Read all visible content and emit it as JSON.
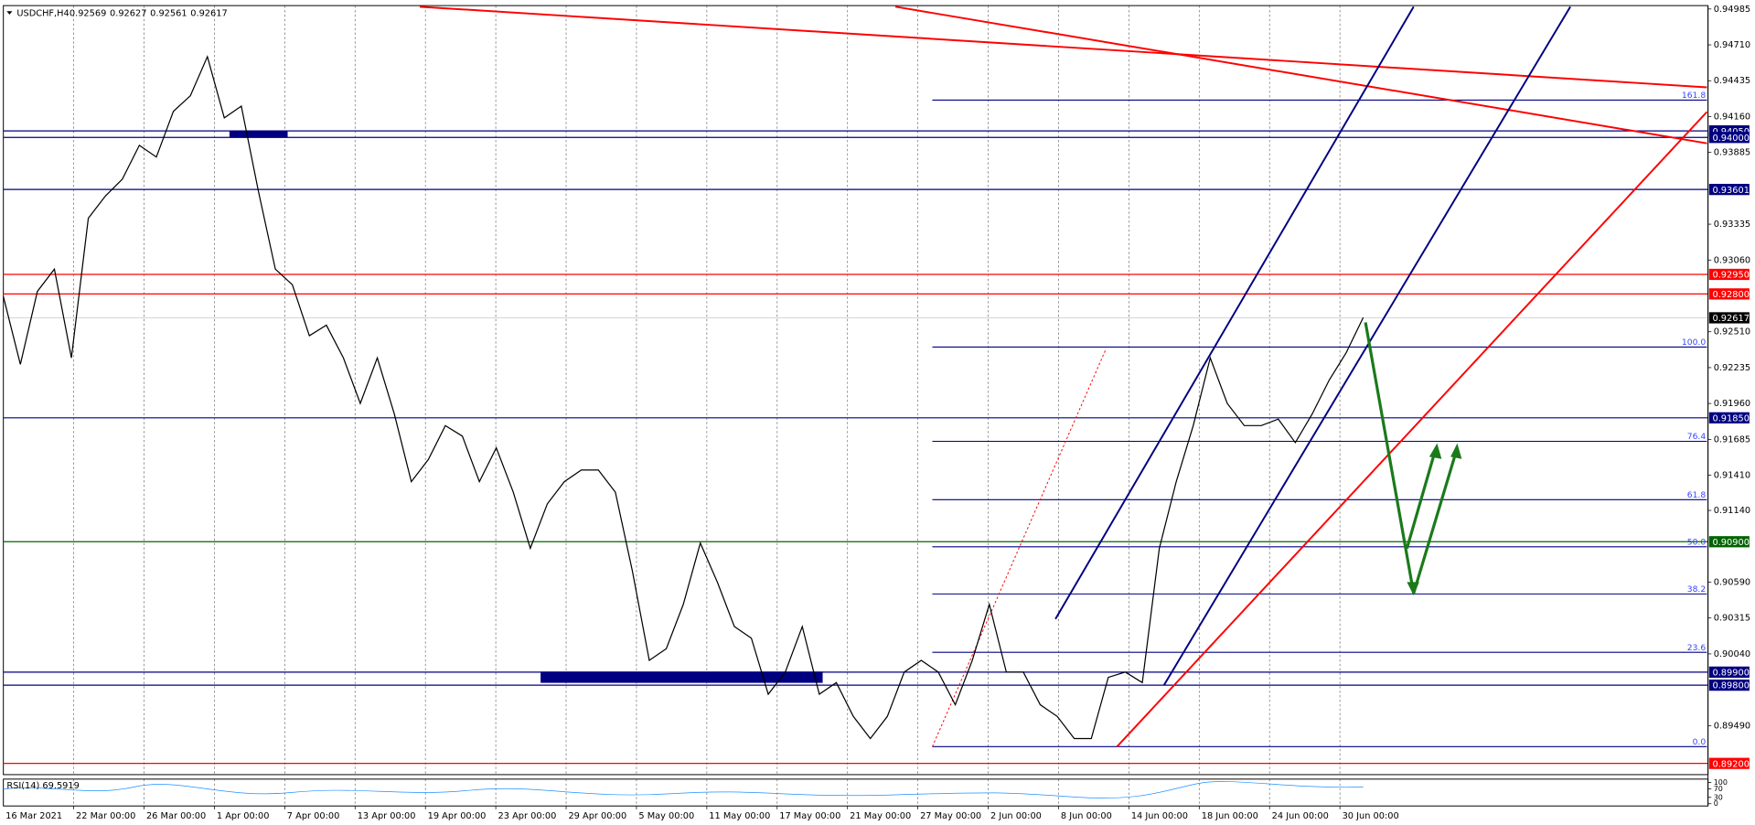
{
  "header": {
    "symbol": "USDCHF,H4",
    "ohlc": [
      0.92569,
      0.92627,
      0.92561,
      0.92617
    ]
  },
  "price_axis": {
    "ylim": [
      0.89114,
      0.95011
    ],
    "ticks": [
      0.94985,
      {
        "value": 0.9471,
        "label": "0.94710"
      },
      0.94435,
      {
        "value": 0.9416,
        "label": "0.94160"
      },
      0.93885,
      0.93335,
      {
        "value": 0.9306,
        "label": "0.93060"
      },
      {
        "value": 0.9251,
        "label": "0.92510"
      },
      0.92235,
      {
        "value": 0.9196,
        "label": "0.91960"
      },
      0.91685,
      {
        "value": 0.9141,
        "label": "0.91410"
      },
      {
        "value": 0.9114,
        "label": "0.91140"
      },
      {
        "value": 0.9059,
        "label": "0.90590"
      },
      0.90315,
      {
        "value": 0.9004,
        "label": "0.90040"
      },
      {
        "value": 0.8949,
        "label": "0.89490"
      }
    ]
  },
  "levels": [
    {
      "value": 0.9405,
      "label": "0.94050",
      "color": "#000080"
    },
    {
      "value": 0.94,
      "label": "0.94000",
      "color": "#000080"
    },
    {
      "value": 0.93601,
      "label": "0.93601",
      "color": "#000080"
    },
    {
      "value": 0.9295,
      "label": "0.92950",
      "color": "#ff0000"
    },
    {
      "value": 0.928,
      "label": "0.92800",
      "color": "#ff0000"
    },
    {
      "value": 0.92617,
      "label": "0.92617",
      "color": "#000000"
    },
    {
      "value": 0.9185,
      "label": "0.91850",
      "color": "#000080"
    },
    {
      "value": 0.909,
      "label": "0.90900",
      "color": "#006400"
    },
    {
      "value": 0.899,
      "label": "0.89900",
      "color": "#000080"
    },
    {
      "value": 0.898,
      "label": "0.89800",
      "color": "#000080"
    },
    {
      "value": 0.892,
      "label": "0.89200",
      "color": "#ff0000"
    }
  ],
  "fibonacci": {
    "low": 0.89329,
    "high": 0.92393,
    "levels": [
      161.8,
      {
        "value": 100,
        "label": "100.0"
      },
      76.4,
      61.8,
      {
        "value": 50,
        "label": "50.0"
      },
      38.2,
      23.6,
      {
        "value": 0,
        "label": "0.0"
      }
    ]
  },
  "price_trace": {
    "values": [
      0.9278,
      0.9226,
      0.9282,
      0.9299,
      0.9231,
      0.9338,
      0.9355,
      0.9368,
      0.9394,
      0.9385,
      0.942,
      0.9432,
      0.9462,
      0.9415,
      0.9424,
      0.9359,
      0.9299,
      0.9287,
      0.9248,
      0.9256,
      0.9231,
      0.9196,
      0.9231,
      0.9188,
      0.9136,
      0.9153,
      0.9179,
      0.9171,
      0.9136,
      0.9162,
      0.9128,
      0.9085,
      0.9119,
      0.9136,
      0.9145,
      0.9145,
      0.9128,
      0.9068,
      0.8999,
      0.9008,
      0.9042,
      0.9089,
      0.9059,
      0.9025,
      0.9016,
      0.8973,
      0.899,
      0.9025,
      0.8973,
      0.8982,
      0.8956,
      0.8939,
      0.8956,
      0.899,
      0.8999,
      0.899,
      0.8965,
      0.8999,
      0.9042,
      0.899,
      0.899,
      0.8965,
      0.8956,
      0.8939,
      0.8939,
      0.8986,
      0.899,
      0.8982,
      0.9085,
      0.9136,
      0.9179,
      0.9231,
      0.9196,
      0.9179,
      0.9179,
      0.9184,
      0.9166,
      0.9188,
      0.9214,
      0.9235,
      0.9262
    ]
  },
  "time_axis": {
    "labels": [
      "16 Mar 2021",
      "22 Mar 00:00",
      "26 Mar 00:00",
      "1 Apr 00:00",
      "7 Apr 00:00",
      "13 Apr 00:00",
      "19 Apr 00:00",
      "23 Apr 00:00",
      "29 Apr 00:00",
      "5 May 00:00",
      "11 May 00:00",
      "17 May 00:00",
      "21 May 00:00",
      "27 May 00:00",
      "2 Jun 00:00",
      "8 Jun 00:00",
      "14 Jun 00:00",
      "18 Jun 00:00",
      "24 Jun 00:00",
      "30 Jun 00:00"
    ]
  },
  "rsi": {
    "label": "RSI(14) 69.5919",
    "ticks": [
      100,
      70,
      30,
      0
    ]
  }
}
